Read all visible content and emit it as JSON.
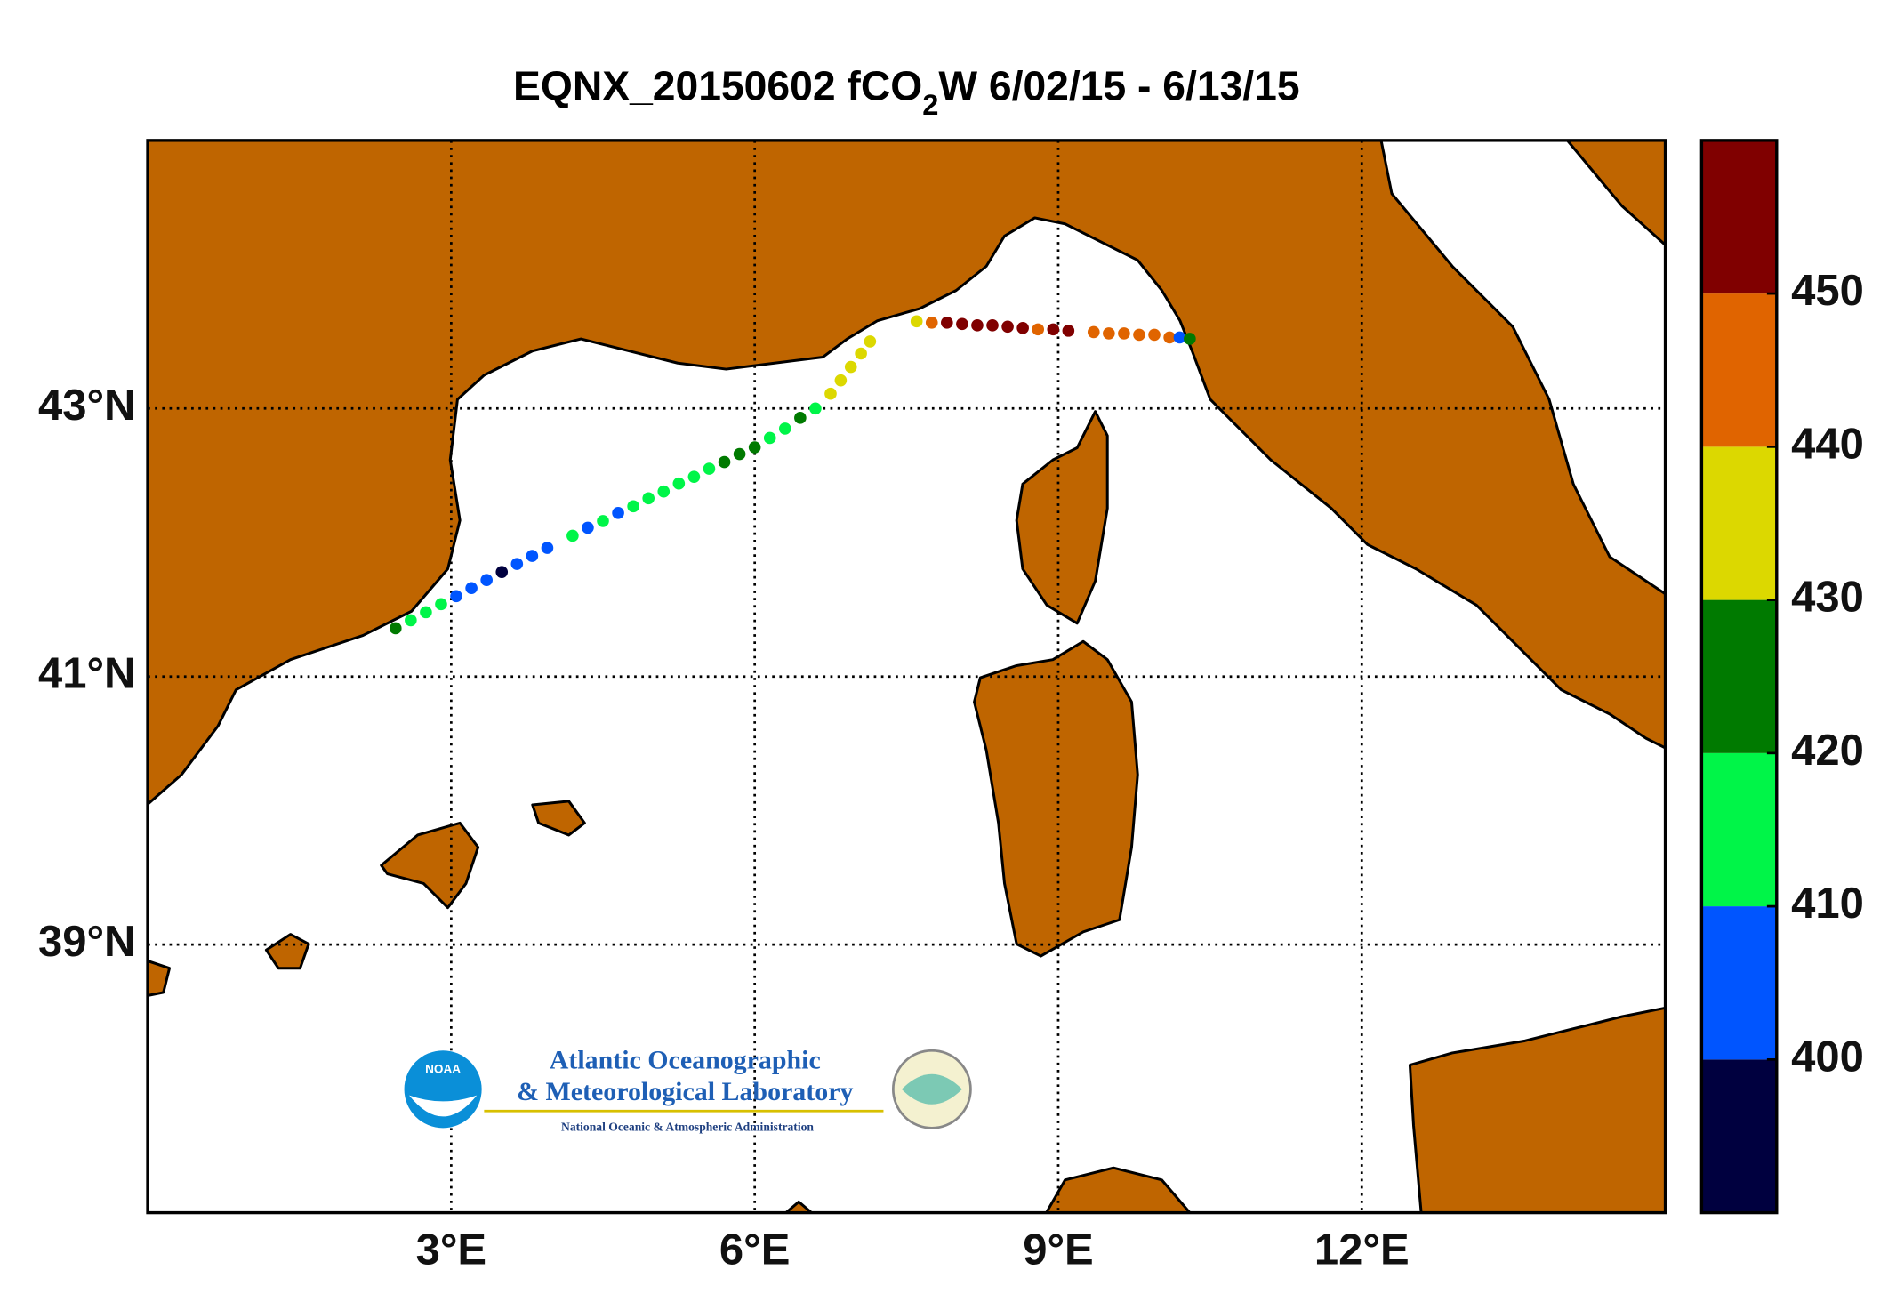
{
  "chart_data": {
    "type": "scatter",
    "title": [
      "EQNX_20150602 fCO",
      "2",
      "W 6/02/15 - 6/13/15"
    ],
    "xlim": [
      0,
      15
    ],
    "ylim": [
      37,
      45
    ],
    "xticks": [
      {
        "value": 3,
        "label": "3°E"
      },
      {
        "value": 6,
        "label": "6°E"
      },
      {
        "value": 9,
        "label": "9°E"
      },
      {
        "value": 12,
        "label": "12°E"
      }
    ],
    "yticks": [
      {
        "value": 39,
        "label": "39°N"
      },
      {
        "value": 41,
        "label": "41°N"
      },
      {
        "value": 43,
        "label": "43°N"
      }
    ],
    "grid": true,
    "series": [
      {
        "x": [
          2.45,
          2.6,
          2.75,
          2.9,
          3.05,
          3.2,
          3.35,
          3.5,
          3.65,
          3.8,
          3.95,
          4.2,
          4.35,
          4.5,
          4.65,
          4.8,
          4.95,
          5.1,
          5.25,
          5.4,
          5.55,
          5.7,
          5.85,
          6.0,
          6.15,
          6.3,
          6.45,
          6.6,
          6.75,
          6.85,
          6.95,
          7.05,
          7.14,
          7.6,
          7.75,
          7.9,
          8.05,
          8.2,
          8.35,
          8.5,
          8.65,
          8.8,
          8.95,
          9.1,
          9.35,
          9.5,
          9.65,
          9.8,
          9.95,
          10.1,
          10.2,
          10.3
        ],
        "y": [
          41.36,
          41.42,
          41.48,
          41.54,
          41.6,
          41.66,
          41.72,
          41.78,
          41.84,
          41.9,
          41.96,
          42.05,
          42.11,
          42.16,
          42.22,
          42.27,
          42.33,
          42.38,
          42.44,
          42.49,
          42.55,
          42.6,
          42.66,
          42.71,
          42.78,
          42.85,
          42.93,
          43.0,
          43.11,
          43.21,
          43.31,
          43.41,
          43.5,
          43.65,
          43.64,
          43.64,
          43.63,
          43.62,
          43.62,
          43.61,
          43.6,
          43.59,
          43.59,
          43.58,
          43.57,
          43.56,
          43.56,
          43.55,
          43.55,
          43.53,
          43.53,
          43.52
        ],
        "values": [
          425,
          415,
          415,
          415,
          405,
          405,
          405,
          395,
          405,
          405,
          405,
          412,
          405,
          412,
          405,
          412,
          415,
          415,
          415,
          415,
          415,
          422,
          425,
          425,
          415,
          418,
          422,
          415,
          435,
          435,
          435,
          435,
          435,
          435,
          445,
          455,
          455,
          455,
          455,
          455,
          455,
          445,
          455,
          455,
          445,
          445,
          445,
          445,
          445,
          445,
          405,
          425
        ]
      }
    ],
    "colorbar": {
      "clim": [
        390,
        460
      ],
      "ticks": [
        400,
        410,
        420,
        430,
        440,
        450
      ],
      "colors": [
        "#00003f",
        "#0055ff",
        "#00f548",
        "#007a00",
        "#dcd800",
        "#e06400",
        "#800000"
      ]
    },
    "land_color": "#bf6500",
    "logo": {
      "badge": "NOAA",
      "line1": "Atlantic Oceanographic",
      "line2": "& Meteorological Laboratory",
      "line3": "National Oceanic & Atmospheric Administration"
    }
  }
}
